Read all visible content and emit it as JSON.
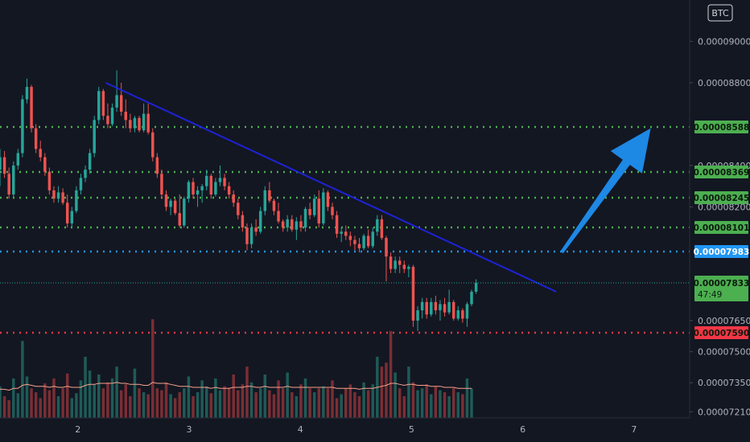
{
  "chart_data": {
    "type": "candlestick",
    "currency_badge": "BTC",
    "x_ticks": [
      "2",
      "3",
      "4",
      "5",
      "6",
      "7"
    ],
    "y_ticks": [
      "0.00009000",
      "0.00008800",
      "0.00008400",
      "0.00008200",
      "0.00007650",
      "0.00007500",
      "0.00007350",
      "0.00007210"
    ],
    "y_range": [
      7.18e-05,
      9.2e-05
    ],
    "x_range": [
      1.3,
      7.5
    ],
    "colors": {
      "up": "#26a69a",
      "down": "#ef5350",
      "green_level": "#4caf50",
      "blue_level": "#2196f3",
      "red_level": "#f23645",
      "trendline": "#1e22d8",
      "arrow": "#1e88e5",
      "vol_up": "#1e5b57",
      "vol_down": "#7a2e34",
      "vol_ma": "#f9a08c"
    },
    "horizontal_levels": [
      {
        "value": "0.00008588",
        "color": "green"
      },
      {
        "value": "0.00008369",
        "color": "green"
      },
      {
        "value": "0.00008245",
        "color": "green"
      },
      {
        "value": "0.00008101",
        "color": "green"
      },
      {
        "value": "0.00007983",
        "color": "blue"
      },
      {
        "value": "0.00007590",
        "color": "red"
      }
    ],
    "last_price": {
      "value": "0.00007833",
      "countdown": "47:49"
    },
    "trendline": {
      "from": {
        "x": 2.25,
        "y": 8.8e-05
      },
      "to": {
        "x": 6.3,
        "y": 7.79e-05
      }
    },
    "arrow": {
      "from": {
        "x": 6.35,
        "y": 7.98e-05
      },
      "to": {
        "x": 7.15,
        "y": 8.58e-05
      }
    },
    "candles": [
      {
        "o": 8380,
        "h": 8480,
        "l": 8300,
        "c": 8440
      },
      {
        "o": 8440,
        "h": 8470,
        "l": 8340,
        "c": 8360
      },
      {
        "o": 8360,
        "h": 8390,
        "l": 8240,
        "c": 8260
      },
      {
        "o": 8260,
        "h": 8420,
        "l": 8250,
        "c": 8400
      },
      {
        "o": 8400,
        "h": 8480,
        "l": 8380,
        "c": 8460
      },
      {
        "o": 8460,
        "h": 8740,
        "l": 8440,
        "c": 8720
      },
      {
        "o": 8720,
        "h": 8820,
        "l": 8700,
        "c": 8780
      },
      {
        "o": 8780,
        "h": 8790,
        "l": 8560,
        "c": 8580
      },
      {
        "o": 8580,
        "h": 8600,
        "l": 8460,
        "c": 8480
      },
      {
        "o": 8480,
        "h": 8520,
        "l": 8420,
        "c": 8440
      },
      {
        "o": 8440,
        "h": 8460,
        "l": 8350,
        "c": 8370
      },
      {
        "o": 8370,
        "h": 8390,
        "l": 8260,
        "c": 8280
      },
      {
        "o": 8280,
        "h": 8300,
        "l": 8220,
        "c": 8240
      },
      {
        "o": 8240,
        "h": 8300,
        "l": 8220,
        "c": 8270
      },
      {
        "o": 8270,
        "h": 8290,
        "l": 8210,
        "c": 8220
      },
      {
        "o": 8220,
        "h": 8260,
        "l": 8100,
        "c": 8120
      },
      {
        "o": 8120,
        "h": 8200,
        "l": 8100,
        "c": 8180
      },
      {
        "o": 8180,
        "h": 8300,
        "l": 8170,
        "c": 8280
      },
      {
        "o": 8280,
        "h": 8360,
        "l": 8260,
        "c": 8340
      },
      {
        "o": 8340,
        "h": 8400,
        "l": 8320,
        "c": 8380
      },
      {
        "o": 8380,
        "h": 8480,
        "l": 8360,
        "c": 8460
      },
      {
        "o": 8460,
        "h": 8640,
        "l": 8440,
        "c": 8620
      },
      {
        "o": 8620,
        "h": 8780,
        "l": 8600,
        "c": 8760
      },
      {
        "o": 8760,
        "h": 8770,
        "l": 8620,
        "c": 8640
      },
      {
        "o": 8640,
        "h": 8700,
        "l": 8580,
        "c": 8600
      },
      {
        "o": 8600,
        "h": 8700,
        "l": 8590,
        "c": 8680
      },
      {
        "o": 8680,
        "h": 8860,
        "l": 8660,
        "c": 8740
      },
      {
        "o": 8740,
        "h": 8800,
        "l": 8640,
        "c": 8660
      },
      {
        "o": 8660,
        "h": 8720,
        "l": 8580,
        "c": 8620
      },
      {
        "o": 8620,
        "h": 8650,
        "l": 8560,
        "c": 8580
      },
      {
        "o": 8580,
        "h": 8640,
        "l": 8560,
        "c": 8630
      },
      {
        "o": 8630,
        "h": 8640,
        "l": 8560,
        "c": 8570
      },
      {
        "o": 8570,
        "h": 8700,
        "l": 8560,
        "c": 8650
      },
      {
        "o": 8650,
        "h": 8700,
        "l": 8550,
        "c": 8560
      },
      {
        "o": 8560,
        "h": 8580,
        "l": 8420,
        "c": 8440
      },
      {
        "o": 8440,
        "h": 8460,
        "l": 8340,
        "c": 8360
      },
      {
        "o": 8360,
        "h": 8380,
        "l": 8240,
        "c": 8260
      },
      {
        "o": 8260,
        "h": 8280,
        "l": 8180,
        "c": 8200
      },
      {
        "o": 8200,
        "h": 8240,
        "l": 8160,
        "c": 8230
      },
      {
        "o": 8230,
        "h": 8240,
        "l": 8160,
        "c": 8170
      },
      {
        "o": 8170,
        "h": 8260,
        "l": 8100,
        "c": 8110
      },
      {
        "o": 8110,
        "h": 8250,
        "l": 8100,
        "c": 8240
      },
      {
        "o": 8240,
        "h": 8330,
        "l": 8220,
        "c": 8320
      },
      {
        "o": 8320,
        "h": 8340,
        "l": 8240,
        "c": 8260
      },
      {
        "o": 8260,
        "h": 8300,
        "l": 8200,
        "c": 8280
      },
      {
        "o": 8280,
        "h": 8310,
        "l": 8220,
        "c": 8300
      },
      {
        "o": 8300,
        "h": 8380,
        "l": 8280,
        "c": 8350
      },
      {
        "o": 8350,
        "h": 8360,
        "l": 8240,
        "c": 8260
      },
      {
        "o": 8260,
        "h": 8340,
        "l": 8250,
        "c": 8320
      },
      {
        "o": 8320,
        "h": 8400,
        "l": 8300,
        "c": 8340
      },
      {
        "o": 8340,
        "h": 8360,
        "l": 8280,
        "c": 8300
      },
      {
        "o": 8300,
        "h": 8320,
        "l": 8240,
        "c": 8260
      },
      {
        "o": 8260,
        "h": 8280,
        "l": 8200,
        "c": 8220
      },
      {
        "o": 8220,
        "h": 8240,
        "l": 8140,
        "c": 8160
      },
      {
        "o": 8160,
        "h": 8180,
        "l": 8080,
        "c": 8100
      },
      {
        "o": 8100,
        "h": 8120,
        "l": 7990,
        "c": 8020
      },
      {
        "o": 8020,
        "h": 8120,
        "l": 8000,
        "c": 8100
      },
      {
        "o": 8100,
        "h": 8140,
        "l": 8060,
        "c": 8080
      },
      {
        "o": 8080,
        "h": 8200,
        "l": 8070,
        "c": 8180
      },
      {
        "o": 8180,
        "h": 8300,
        "l": 8160,
        "c": 8280
      },
      {
        "o": 8280,
        "h": 8320,
        "l": 8220,
        "c": 8230
      },
      {
        "o": 8230,
        "h": 8240,
        "l": 8160,
        "c": 8180
      },
      {
        "o": 8180,
        "h": 8220,
        "l": 8120,
        "c": 8130
      },
      {
        "o": 8130,
        "h": 8140,
        "l": 8080,
        "c": 8100
      },
      {
        "o": 8100,
        "h": 8160,
        "l": 8080,
        "c": 8140
      },
      {
        "o": 8140,
        "h": 8160,
        "l": 8080,
        "c": 8090
      },
      {
        "o": 8090,
        "h": 8150,
        "l": 8040,
        "c": 8130
      },
      {
        "o": 8130,
        "h": 8160,
        "l": 8080,
        "c": 8100
      },
      {
        "o": 8100,
        "h": 8200,
        "l": 8080,
        "c": 8190
      },
      {
        "o": 8190,
        "h": 8220,
        "l": 8140,
        "c": 8160
      },
      {
        "o": 8160,
        "h": 8260,
        "l": 8150,
        "c": 8240
      },
      {
        "o": 8240,
        "h": 8280,
        "l": 8100,
        "c": 8120
      },
      {
        "o": 8120,
        "h": 8290,
        "l": 8110,
        "c": 8270
      },
      {
        "o": 8270,
        "h": 8280,
        "l": 8180,
        "c": 8200
      },
      {
        "o": 8200,
        "h": 8220,
        "l": 8140,
        "c": 8160
      },
      {
        "o": 8160,
        "h": 8180,
        "l": 8050,
        "c": 8070
      },
      {
        "o": 8070,
        "h": 8100,
        "l": 8030,
        "c": 8080
      },
      {
        "o": 8080,
        "h": 8110,
        "l": 8040,
        "c": 8060
      },
      {
        "o": 8060,
        "h": 8080,
        "l": 8010,
        "c": 8040
      },
      {
        "o": 8040,
        "h": 8060,
        "l": 7990,
        "c": 8020
      },
      {
        "o": 8020,
        "h": 8050,
        "l": 7980,
        "c": 8000
      },
      {
        "o": 8000,
        "h": 8070,
        "l": 7990,
        "c": 8060
      },
      {
        "o": 8060,
        "h": 8090,
        "l": 8000,
        "c": 8010
      },
      {
        "o": 8010,
        "h": 8100,
        "l": 8000,
        "c": 8080
      },
      {
        "o": 8080,
        "h": 8160,
        "l": 8060,
        "c": 8140
      },
      {
        "o": 8140,
        "h": 8160,
        "l": 8040,
        "c": 8050
      },
      {
        "o": 8050,
        "h": 8060,
        "l": 7840,
        "c": 7960
      },
      {
        "o": 7960,
        "h": 7980,
        "l": 7880,
        "c": 7900
      },
      {
        "o": 7900,
        "h": 7960,
        "l": 7880,
        "c": 7940
      },
      {
        "o": 7940,
        "h": 7960,
        "l": 7880,
        "c": 7920
      },
      {
        "o": 7920,
        "h": 7940,
        "l": 7880,
        "c": 7900
      },
      {
        "o": 7900,
        "h": 7920,
        "l": 7860,
        "c": 7910
      },
      {
        "o": 7910,
        "h": 7920,
        "l": 7620,
        "c": 7650
      },
      {
        "o": 7650,
        "h": 7720,
        "l": 7600,
        "c": 7700
      },
      {
        "o": 7700,
        "h": 7760,
        "l": 7660,
        "c": 7740
      },
      {
        "o": 7740,
        "h": 7760,
        "l": 7660,
        "c": 7680
      },
      {
        "o": 7680,
        "h": 7760,
        "l": 7670,
        "c": 7740
      },
      {
        "o": 7740,
        "h": 7770,
        "l": 7680,
        "c": 7700
      },
      {
        "o": 7700,
        "h": 7750,
        "l": 7650,
        "c": 7730
      },
      {
        "o": 7730,
        "h": 7760,
        "l": 7670,
        "c": 7690
      },
      {
        "o": 7690,
        "h": 7800,
        "l": 7680,
        "c": 7740
      },
      {
        "o": 7740,
        "h": 7750,
        "l": 7650,
        "c": 7660
      },
      {
        "o": 7660,
        "h": 7720,
        "l": 7650,
        "c": 7700
      },
      {
        "o": 7700,
        "h": 7710,
        "l": 7640,
        "c": 7660
      },
      {
        "o": 7660,
        "h": 7740,
        "l": 7620,
        "c": 7730
      },
      {
        "o": 7730,
        "h": 7800,
        "l": 7720,
        "c": 7790
      },
      {
        "o": 7790,
        "h": 7850,
        "l": 7780,
        "c": 7833
      }
    ],
    "volumes": [
      32,
      22,
      18,
      40,
      25,
      78,
      42,
      30,
      26,
      20,
      35,
      28,
      40,
      22,
      30,
      45,
      20,
      25,
      38,
      62,
      48,
      34,
      44,
      30,
      36,
      40,
      52,
      28,
      34,
      22,
      50,
      30,
      26,
      24,
      100,
      30,
      28,
      36,
      24,
      20,
      26,
      30,
      42,
      22,
      26,
      38,
      32,
      25,
      40,
      28,
      32,
      30,
      44,
      28,
      34,
      52,
      36,
      26,
      30,
      44,
      28,
      24,
      38,
      30,
      46,
      26,
      22,
      34,
      40,
      30,
      26,
      30,
      32,
      30,
      38,
      20,
      24,
      30,
      34,
      26,
      22,
      36,
      28,
      34,
      62,
      52,
      56,
      88,
      46,
      30,
      22,
      52,
      36,
      28,
      30,
      34,
      24,
      32,
      28,
      26,
      22,
      30,
      26,
      24,
      40,
      30
    ],
    "volume_ma": [
      29,
      29,
      28,
      30,
      30,
      33,
      34,
      33,
      32,
      32,
      32,
      31,
      32,
      31,
      31,
      32,
      31,
      31,
      31,
      33,
      34,
      34,
      35,
      35,
      35,
      35,
      36,
      35,
      35,
      34,
      34,
      34,
      33,
      33,
      36,
      35,
      35,
      35,
      34,
      33,
      32,
      32,
      32,
      31,
      31,
      31,
      31,
      30,
      31,
      30,
      30,
      30,
      31,
      31,
      31,
      32,
      32,
      31,
      31,
      32,
      31,
      31,
      31,
      31,
      32,
      31,
      31,
      31,
      31,
      31,
      31,
      31,
      31,
      31,
      31,
      30,
      30,
      30,
      30,
      30,
      29,
      30,
      30,
      30,
      31,
      32,
      33,
      35,
      35,
      34,
      33,
      34,
      34,
      33,
      33,
      33,
      32,
      32,
      32,
      31,
      31,
      31,
      30,
      30,
      30,
      30
    ]
  }
}
